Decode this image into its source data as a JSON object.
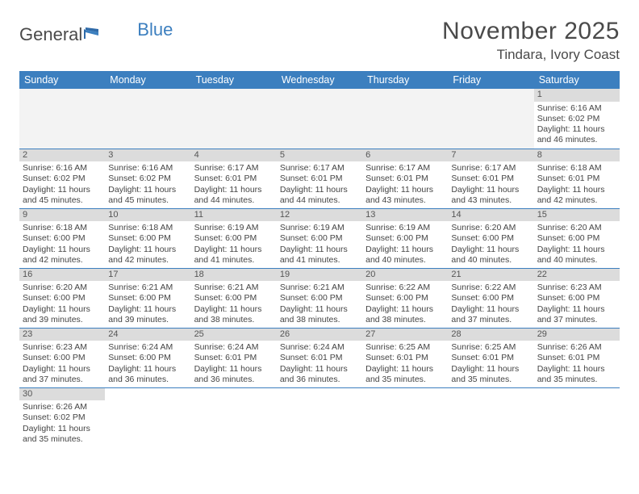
{
  "logo": {
    "text1": "General",
    "text2": "Blue"
  },
  "header": {
    "month_title": "November 2025",
    "location": "Tindara, Ivory Coast"
  },
  "colors": {
    "header_bg": "#3c7fbf",
    "header_text": "#ffffff",
    "daynum_bg": "#dcdcdc",
    "cell_border": "#3c7fbf",
    "empty_bg": "#f3f3f3",
    "text": "#444444"
  },
  "daynames": [
    "Sunday",
    "Monday",
    "Tuesday",
    "Wednesday",
    "Thursday",
    "Friday",
    "Saturday"
  ],
  "weeks": [
    [
      null,
      null,
      null,
      null,
      null,
      null,
      {
        "n": "1",
        "sr": "Sunrise: 6:16 AM",
        "ss": "Sunset: 6:02 PM",
        "d1": "Daylight: 11 hours",
        "d2": "and 46 minutes."
      }
    ],
    [
      {
        "n": "2",
        "sr": "Sunrise: 6:16 AM",
        "ss": "Sunset: 6:02 PM",
        "d1": "Daylight: 11 hours",
        "d2": "and 45 minutes."
      },
      {
        "n": "3",
        "sr": "Sunrise: 6:16 AM",
        "ss": "Sunset: 6:02 PM",
        "d1": "Daylight: 11 hours",
        "d2": "and 45 minutes."
      },
      {
        "n": "4",
        "sr": "Sunrise: 6:17 AM",
        "ss": "Sunset: 6:01 PM",
        "d1": "Daylight: 11 hours",
        "d2": "and 44 minutes."
      },
      {
        "n": "5",
        "sr": "Sunrise: 6:17 AM",
        "ss": "Sunset: 6:01 PM",
        "d1": "Daylight: 11 hours",
        "d2": "and 44 minutes."
      },
      {
        "n": "6",
        "sr": "Sunrise: 6:17 AM",
        "ss": "Sunset: 6:01 PM",
        "d1": "Daylight: 11 hours",
        "d2": "and 43 minutes."
      },
      {
        "n": "7",
        "sr": "Sunrise: 6:17 AM",
        "ss": "Sunset: 6:01 PM",
        "d1": "Daylight: 11 hours",
        "d2": "and 43 minutes."
      },
      {
        "n": "8",
        "sr": "Sunrise: 6:18 AM",
        "ss": "Sunset: 6:01 PM",
        "d1": "Daylight: 11 hours",
        "d2": "and 42 minutes."
      }
    ],
    [
      {
        "n": "9",
        "sr": "Sunrise: 6:18 AM",
        "ss": "Sunset: 6:00 PM",
        "d1": "Daylight: 11 hours",
        "d2": "and 42 minutes."
      },
      {
        "n": "10",
        "sr": "Sunrise: 6:18 AM",
        "ss": "Sunset: 6:00 PM",
        "d1": "Daylight: 11 hours",
        "d2": "and 42 minutes."
      },
      {
        "n": "11",
        "sr": "Sunrise: 6:19 AM",
        "ss": "Sunset: 6:00 PM",
        "d1": "Daylight: 11 hours",
        "d2": "and 41 minutes."
      },
      {
        "n": "12",
        "sr": "Sunrise: 6:19 AM",
        "ss": "Sunset: 6:00 PM",
        "d1": "Daylight: 11 hours",
        "d2": "and 41 minutes."
      },
      {
        "n": "13",
        "sr": "Sunrise: 6:19 AM",
        "ss": "Sunset: 6:00 PM",
        "d1": "Daylight: 11 hours",
        "d2": "and 40 minutes."
      },
      {
        "n": "14",
        "sr": "Sunrise: 6:20 AM",
        "ss": "Sunset: 6:00 PM",
        "d1": "Daylight: 11 hours",
        "d2": "and 40 minutes."
      },
      {
        "n": "15",
        "sr": "Sunrise: 6:20 AM",
        "ss": "Sunset: 6:00 PM",
        "d1": "Daylight: 11 hours",
        "d2": "and 40 minutes."
      }
    ],
    [
      {
        "n": "16",
        "sr": "Sunrise: 6:20 AM",
        "ss": "Sunset: 6:00 PM",
        "d1": "Daylight: 11 hours",
        "d2": "and 39 minutes."
      },
      {
        "n": "17",
        "sr": "Sunrise: 6:21 AM",
        "ss": "Sunset: 6:00 PM",
        "d1": "Daylight: 11 hours",
        "d2": "and 39 minutes."
      },
      {
        "n": "18",
        "sr": "Sunrise: 6:21 AM",
        "ss": "Sunset: 6:00 PM",
        "d1": "Daylight: 11 hours",
        "d2": "and 38 minutes."
      },
      {
        "n": "19",
        "sr": "Sunrise: 6:21 AM",
        "ss": "Sunset: 6:00 PM",
        "d1": "Daylight: 11 hours",
        "d2": "and 38 minutes."
      },
      {
        "n": "20",
        "sr": "Sunrise: 6:22 AM",
        "ss": "Sunset: 6:00 PM",
        "d1": "Daylight: 11 hours",
        "d2": "and 38 minutes."
      },
      {
        "n": "21",
        "sr": "Sunrise: 6:22 AM",
        "ss": "Sunset: 6:00 PM",
        "d1": "Daylight: 11 hours",
        "d2": "and 37 minutes."
      },
      {
        "n": "22",
        "sr": "Sunrise: 6:23 AM",
        "ss": "Sunset: 6:00 PM",
        "d1": "Daylight: 11 hours",
        "d2": "and 37 minutes."
      }
    ],
    [
      {
        "n": "23",
        "sr": "Sunrise: 6:23 AM",
        "ss": "Sunset: 6:00 PM",
        "d1": "Daylight: 11 hours",
        "d2": "and 37 minutes."
      },
      {
        "n": "24",
        "sr": "Sunrise: 6:24 AM",
        "ss": "Sunset: 6:00 PM",
        "d1": "Daylight: 11 hours",
        "d2": "and 36 minutes."
      },
      {
        "n": "25",
        "sr": "Sunrise: 6:24 AM",
        "ss": "Sunset: 6:01 PM",
        "d1": "Daylight: 11 hours",
        "d2": "and 36 minutes."
      },
      {
        "n": "26",
        "sr": "Sunrise: 6:24 AM",
        "ss": "Sunset: 6:01 PM",
        "d1": "Daylight: 11 hours",
        "d2": "and 36 minutes."
      },
      {
        "n": "27",
        "sr": "Sunrise: 6:25 AM",
        "ss": "Sunset: 6:01 PM",
        "d1": "Daylight: 11 hours",
        "d2": "and 35 minutes."
      },
      {
        "n": "28",
        "sr": "Sunrise: 6:25 AM",
        "ss": "Sunset: 6:01 PM",
        "d1": "Daylight: 11 hours",
        "d2": "and 35 minutes."
      },
      {
        "n": "29",
        "sr": "Sunrise: 6:26 AM",
        "ss": "Sunset: 6:01 PM",
        "d1": "Daylight: 11 hours",
        "d2": "and 35 minutes."
      }
    ],
    [
      {
        "n": "30",
        "sr": "Sunrise: 6:26 AM",
        "ss": "Sunset: 6:02 PM",
        "d1": "Daylight: 11 hours",
        "d2": "and 35 minutes."
      },
      null,
      null,
      null,
      null,
      null,
      null
    ]
  ]
}
